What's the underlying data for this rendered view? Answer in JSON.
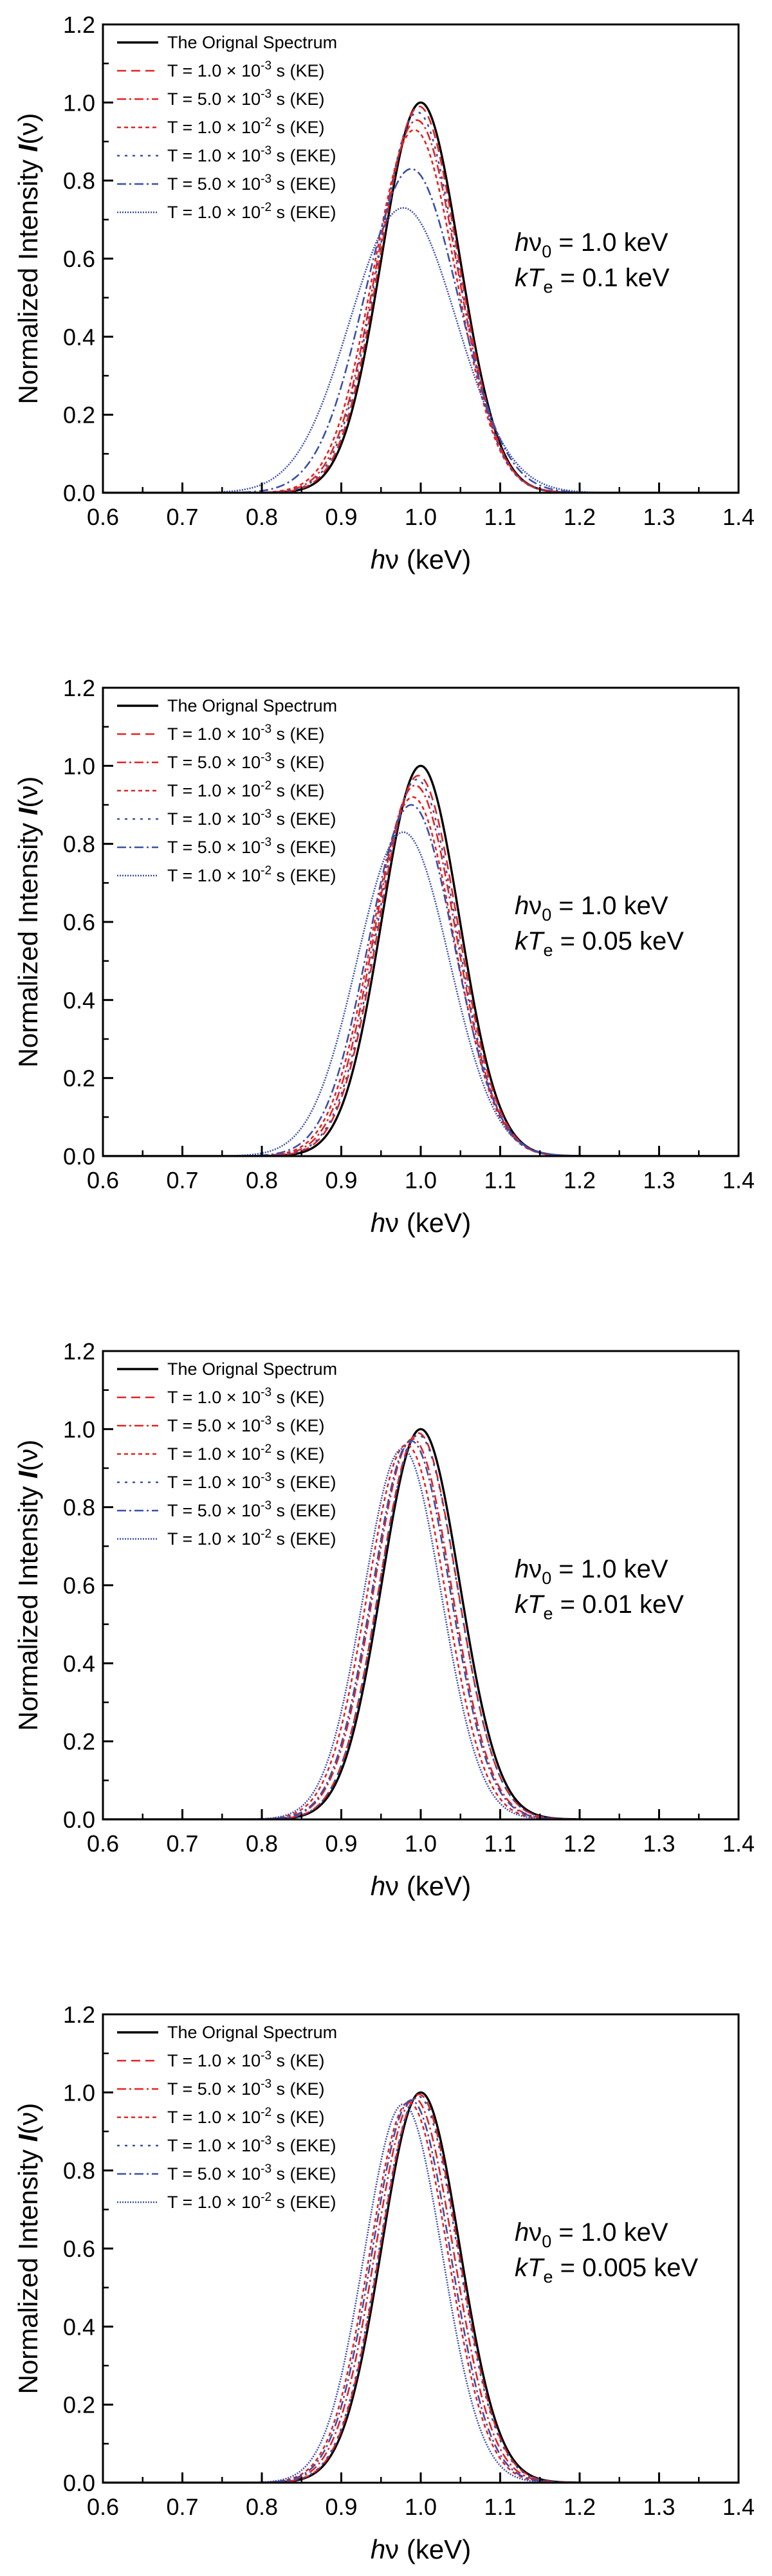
{
  "figure": {
    "x_axis_label": "hν   (keV)",
    "x_label_prefix": "h",
    "x_label_symbol": "ν",
    "x_label_unit": "   (keV)",
    "y_axis_label_text": "Normalized Intensity",
    "y_axis_label_symbol": "I",
    "y_axis_label_arg": "(ν)",
    "y_axis_label": "Normalized Intensity  I(ν)",
    "annotation_line1": "hν0 = 1.0 keV",
    "annotation_line1_parts": {
      "h": "h",
      "nu": "ν",
      "sub": "0",
      "rest": " = 1.0 keV"
    }
  },
  "chart_data": [
    {
      "type": "line",
      "title": "",
      "xlabel": "hν (keV)",
      "ylabel": "Normalized Intensity I(ν)",
      "xlim": [
        0.6,
        1.4
      ],
      "ylim": [
        0.0,
        1.2
      ],
      "x_ticks": [
        "0.6",
        "0.7",
        "0.8",
        "0.9",
        "1.0",
        "1.1",
        "1.2",
        "1.3",
        "1.4"
      ],
      "y_ticks": [
        "0.0",
        "0.2",
        "0.4",
        "0.6",
        "0.8",
        "1.0",
        "1.2"
      ],
      "annotation": {
        "line1": "hν0 = 1.0 keV",
        "kT_prefix": "kT",
        "kT_sub": "e",
        "kT_value": " = 0.1 keV"
      },
      "legend_placement": "top-left",
      "series": [
        {
          "name": "The Orignal Spectrum",
          "legend": "The Orignal Spectrum",
          "peak_x": 1.0,
          "peak_y": 1.0,
          "width": 0.049,
          "color": "#000000",
          "dash": ""
        },
        {
          "name": "T = 1.0 × 10-3 s (KE)",
          "legend": "T = 1.0 × 10-3 s (KE)",
          "peak_x": 0.998,
          "peak_y": 0.99,
          "width": 0.0495,
          "color": "#e32222",
          "dash": "14,8"
        },
        {
          "name": "T = 5.0 × 10-3 s (KE)",
          "legend": "T = 5.0 × 10-3 s (KE)",
          "peak_x": 0.995,
          "peak_y": 0.955,
          "width": 0.051,
          "color": "#e32222",
          "dash": "14,5,3,5"
        },
        {
          "name": "T = 1.0 × 10-2 s (KE)",
          "legend": "T = 1.0 × 10-2 s (KE)",
          "peak_x": 0.992,
          "peak_y": 0.93,
          "width": 0.052,
          "color": "#e32222",
          "dash": "6,5"
        },
        {
          "name": "T = 1.0 × 10-3 s (EKE)",
          "legend": "T = 1.0 × 10-3 s (EKE)",
          "peak_x": 0.996,
          "peak_y": 0.975,
          "width": 0.05,
          "color": "#3a4fa8",
          "dash": "4,8"
        },
        {
          "name": "T = 5.0 × 10-3 s (EKE)",
          "legend": "T = 5.0 × 10-3 s (EKE)",
          "peak_x": 0.988,
          "peak_y": 0.83,
          "width": 0.059,
          "color": "#3a4fa8",
          "dash": "14,5,3,5"
        },
        {
          "name": "T = 1.0 × 10-2 s (EKE)",
          "legend": "T = 1.0 × 10-2 s (EKE)",
          "peak_x": 0.978,
          "peak_y": 0.73,
          "width": 0.067,
          "color": "#3a4fa8",
          "dash": "2,2"
        }
      ]
    },
    {
      "type": "line",
      "title": "",
      "xlabel": "hν (keV)",
      "ylabel": "Normalized Intensity I(ν)",
      "xlim": [
        0.6,
        1.4
      ],
      "ylim": [
        0.0,
        1.2
      ],
      "x_ticks": [
        "0.6",
        "0.7",
        "0.8",
        "0.9",
        "1.0",
        "1.1",
        "1.2",
        "1.3",
        "1.4"
      ],
      "y_ticks": [
        "0.0",
        "0.2",
        "0.4",
        "0.6",
        "0.8",
        "1.0",
        "1.2"
      ],
      "annotation": {
        "line1": "hν0 = 1.0 keV",
        "kT_prefix": "kT",
        "kT_sub": "e",
        "kT_value": " = 0.05 keV"
      },
      "legend_placement": "top-left",
      "series": [
        {
          "name": "The Orignal Spectrum",
          "legend": "The Orignal Spectrum",
          "peak_x": 1.0,
          "peak_y": 1.0,
          "width": 0.049,
          "color": "#000000",
          "dash": ""
        },
        {
          "name": "T = 1.0 × 10-3 s (KE)",
          "legend": "T = 1.0 × 10-3 s (KE)",
          "peak_x": 0.997,
          "peak_y": 0.975,
          "width": 0.05,
          "color": "#e32222",
          "dash": "14,8"
        },
        {
          "name": "T = 5.0 × 10-3 s (KE)",
          "legend": "T = 5.0 × 10-3 s (KE)",
          "peak_x": 0.993,
          "peak_y": 0.95,
          "width": 0.051,
          "color": "#e32222",
          "dash": "14,5,3,5"
        },
        {
          "name": "T = 1.0 × 10-2 s (KE)",
          "legend": "T = 1.0 × 10-2 s (KE)",
          "peak_x": 0.99,
          "peak_y": 0.92,
          "width": 0.052,
          "color": "#e32222",
          "dash": "6,5"
        },
        {
          "name": "T = 1.0 × 10-3 s (EKE)",
          "legend": "T = 1.0 × 10-3 s (EKE)",
          "peak_x": 0.995,
          "peak_y": 0.965,
          "width": 0.05,
          "color": "#3a4fa8",
          "dash": "4,8"
        },
        {
          "name": "T = 5.0 × 10-3 s (EKE)",
          "legend": "T = 5.0 × 10-3 s (EKE)",
          "peak_x": 0.988,
          "peak_y": 0.9,
          "width": 0.054,
          "color": "#3a4fa8",
          "dash": "14,5,3,5"
        },
        {
          "name": "T = 1.0 × 10-2 s (EKE)",
          "legend": "T = 1.0 × 10-2 s (EKE)",
          "peak_x": 0.978,
          "peak_y": 0.83,
          "width": 0.058,
          "color": "#3a4fa8",
          "dash": "2,2"
        }
      ]
    },
    {
      "type": "line",
      "title": "",
      "xlabel": "hν (keV)",
      "ylabel": "Normalized Intensity I(ν)",
      "xlim": [
        0.6,
        1.4
      ],
      "ylim": [
        0.0,
        1.2
      ],
      "x_ticks": [
        "0.6",
        "0.7",
        "0.8",
        "0.9",
        "1.0",
        "1.1",
        "1.2",
        "1.3",
        "1.4"
      ],
      "y_ticks": [
        "0.0",
        "0.2",
        "0.4",
        "0.6",
        "0.8",
        "1.0",
        "1.2"
      ],
      "annotation": {
        "line1": "hν0 = 1.0 keV",
        "kT_prefix": "kT",
        "kT_sub": "e",
        "kT_value": " = 0.01 keV"
      },
      "legend_placement": "top-left",
      "series": [
        {
          "name": "The Orignal Spectrum",
          "legend": "The Orignal Spectrum",
          "peak_x": 1.0,
          "peak_y": 1.0,
          "width": 0.049,
          "color": "#000000",
          "dash": ""
        },
        {
          "name": "T = 1.0 × 10-3 s (KE)",
          "legend": "T = 1.0 × 10-3 s (KE)",
          "peak_x": 0.997,
          "peak_y": 0.99,
          "width": 0.049,
          "color": "#e32222",
          "dash": "14,8"
        },
        {
          "name": "T = 5.0 × 10-3 s (KE)",
          "legend": "T = 5.0 × 10-3 s (KE)",
          "peak_x": 0.99,
          "peak_y": 0.975,
          "width": 0.049,
          "color": "#e32222",
          "dash": "14,5,3,5"
        },
        {
          "name": "T = 1.0 × 10-2 s (KE)",
          "legend": "T = 1.0 × 10-2 s (KE)",
          "peak_x": 0.982,
          "peak_y": 0.96,
          "width": 0.049,
          "color": "#e32222",
          "dash": "6,5"
        },
        {
          "name": "T = 1.0 × 10-3 s (EKE)",
          "legend": "T = 1.0 × 10-3 s (EKE)",
          "peak_x": 0.997,
          "peak_y": 0.985,
          "width": 0.049,
          "color": "#3a4fa8",
          "dash": "4,8"
        },
        {
          "name": "T = 5.0 × 10-3 s (EKE)",
          "legend": "T = 5.0 × 10-3 s (EKE)",
          "peak_x": 0.988,
          "peak_y": 0.97,
          "width": 0.049,
          "color": "#3a4fa8",
          "dash": "14,5,3,5"
        },
        {
          "name": "T = 1.0 × 10-2 s (EKE)",
          "legend": "T = 1.0 × 10-2 s (EKE)",
          "peak_x": 0.977,
          "peak_y": 0.95,
          "width": 0.049,
          "color": "#3a4fa8",
          "dash": "2,2"
        }
      ]
    },
    {
      "type": "line",
      "title": "",
      "xlabel": "hν (keV)",
      "ylabel": "Normalized Intensity I(ν)",
      "xlim": [
        0.6,
        1.4
      ],
      "ylim": [
        0.0,
        1.2
      ],
      "x_ticks": [
        "0.6",
        "0.7",
        "0.8",
        "0.9",
        "1.0",
        "1.1",
        "1.2",
        "1.3",
        "1.4"
      ],
      "y_ticks": [
        "0.0",
        "0.2",
        "0.4",
        "0.6",
        "0.8",
        "1.0",
        "1.2"
      ],
      "annotation": {
        "line1": "hν0 = 1.0 keV",
        "kT_prefix": "kT",
        "kT_sub": "e",
        "kT_value": " = 0.005 keV"
      },
      "legend_placement": "top-left",
      "series": [
        {
          "name": "The Orignal Spectrum",
          "legend": "The Orignal Spectrum",
          "peak_x": 1.0,
          "peak_y": 1.0,
          "width": 0.049,
          "color": "#000000",
          "dash": ""
        },
        {
          "name": "T = 1.0 × 10-3 s (KE)",
          "legend": "T = 1.0 × 10-3 s (KE)",
          "peak_x": 0.998,
          "peak_y": 0.995,
          "width": 0.049,
          "color": "#e32222",
          "dash": "14,8"
        },
        {
          "name": "T = 5.0 × 10-3 s (KE)",
          "legend": "T = 5.0 × 10-3 s (KE)",
          "peak_x": 0.992,
          "peak_y": 0.985,
          "width": 0.049,
          "color": "#e32222",
          "dash": "14,5,3,5"
        },
        {
          "name": "T = 1.0 × 10-2 s (KE)",
          "legend": "T = 1.0 × 10-2 s (KE)",
          "peak_x": 0.985,
          "peak_y": 0.975,
          "width": 0.049,
          "color": "#e32222",
          "dash": "6,5"
        },
        {
          "name": "T = 1.0 × 10-3 s (EKE)",
          "legend": "T = 1.0 × 10-3 s (EKE)",
          "peak_x": 0.997,
          "peak_y": 0.99,
          "width": 0.049,
          "color": "#3a4fa8",
          "dash": "4,8"
        },
        {
          "name": "T = 5.0 × 10-3 s (EKE)",
          "legend": "T = 5.0 × 10-3 s (EKE)",
          "peak_x": 0.988,
          "peak_y": 0.98,
          "width": 0.049,
          "color": "#3a4fa8",
          "dash": "14,5,3,5"
        },
        {
          "name": "T = 1.0 × 10-2 s (EKE)",
          "legend": "T = 1.0 × 10-2 s (EKE)",
          "peak_x": 0.978,
          "peak_y": 0.97,
          "width": 0.049,
          "color": "#3a4fa8",
          "dash": "2,2"
        }
      ]
    }
  ]
}
